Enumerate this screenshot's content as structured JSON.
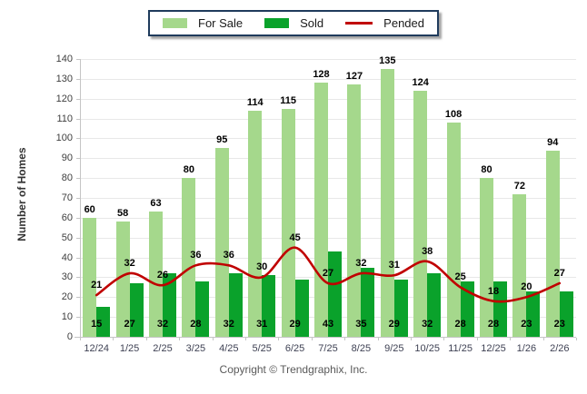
{
  "legend": [
    {
      "label": "For Sale",
      "color": "#A5D88C",
      "type": "bar"
    },
    {
      "label": "Sold",
      "color": "#0AA22B",
      "type": "bar"
    },
    {
      "label": "Pended",
      "color": "#C00000",
      "type": "line"
    }
  ],
  "chart_data": {
    "type": "bar",
    "categories": [
      "12/24",
      "1/25",
      "2/25",
      "3/25",
      "4/25",
      "5/25",
      "6/25",
      "7/25",
      "8/25",
      "9/25",
      "10/25",
      "11/25",
      "12/25",
      "1/26",
      "2/26"
    ],
    "series": [
      {
        "name": "For Sale",
        "type": "bar",
        "color": "#A5D88C",
        "values": [
          60,
          58,
          63,
          80,
          95,
          114,
          115,
          128,
          127,
          135,
          124,
          108,
          80,
          72,
          94
        ]
      },
      {
        "name": "Sold",
        "type": "bar",
        "color": "#0AA22B",
        "values": [
          15,
          27,
          32,
          28,
          32,
          31,
          29,
          43,
          35,
          29,
          32,
          28,
          28,
          23,
          23
        ]
      },
      {
        "name": "Pended",
        "type": "line",
        "color": "#C00000",
        "values": [
          21,
          32,
          26,
          36,
          36,
          30,
          45,
          27,
          32,
          31,
          38,
          25,
          18,
          20,
          27
        ]
      }
    ],
    "xlabel": "",
    "ylabel": "Number of Homes",
    "ylim": [
      0,
      140
    ],
    "ytick_step": 10,
    "grid": true,
    "legend_position": "top-center"
  },
  "footer": {
    "copyright": "Copyright © Trendgraphix, Inc."
  }
}
